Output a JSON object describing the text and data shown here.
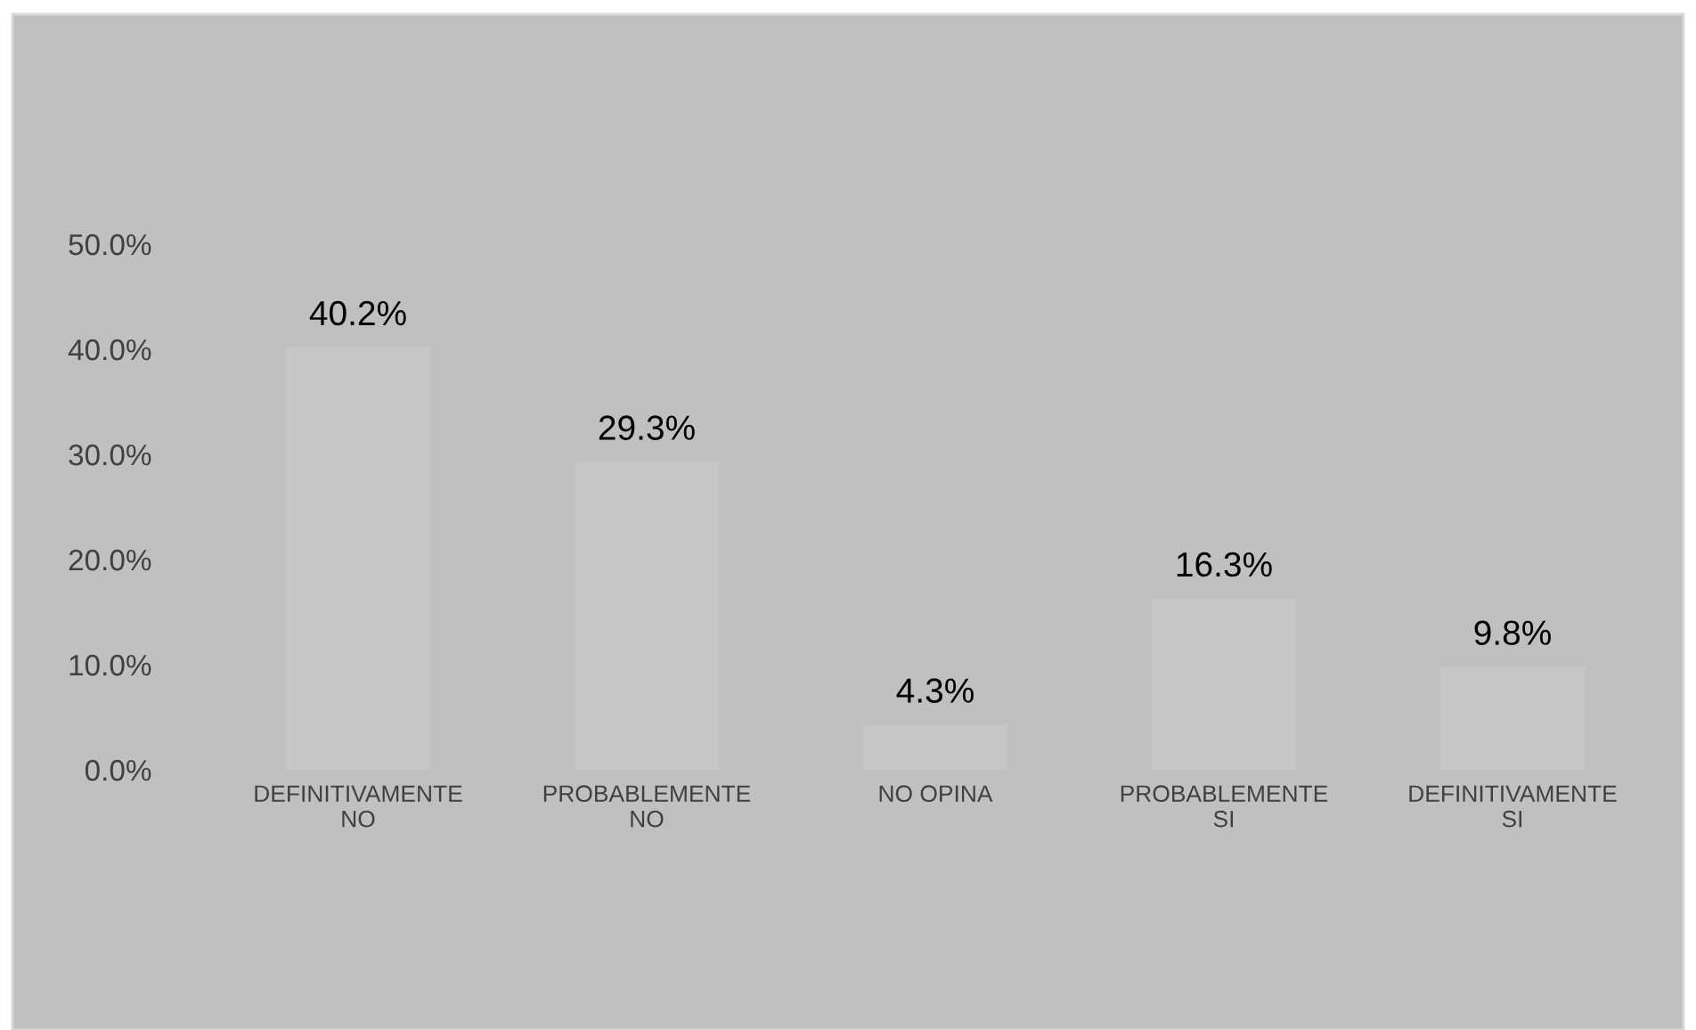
{
  "chart_data": {
    "type": "bar",
    "categories": [
      "DEFINITIVAMENTE\nNO",
      "PROBABLEMENTE\nNO",
      "NO OPINA",
      "PROBABLEMENTE\nSI",
      "DEFINITIVAMENTE\nSI"
    ],
    "values": [
      40.2,
      29.3,
      4.3,
      16.3,
      9.8
    ],
    "value_labels": [
      "40.2%",
      "29.3%",
      "4.3%",
      "16.3%",
      "9.8%"
    ],
    "color": "#c6c6c6",
    "ylim": [
      0,
      50
    ],
    "yticks": [
      {
        "value": 0,
        "label": "0.0%"
      },
      {
        "value": 10,
        "label": "10.0%"
      },
      {
        "value": 20,
        "label": "20.0%"
      },
      {
        "value": 30,
        "label": "30.0%"
      },
      {
        "value": 40,
        "label": "40.0%"
      },
      {
        "value": 50,
        "label": "50.0%"
      }
    ],
    "grid": false,
    "legend": false
  }
}
